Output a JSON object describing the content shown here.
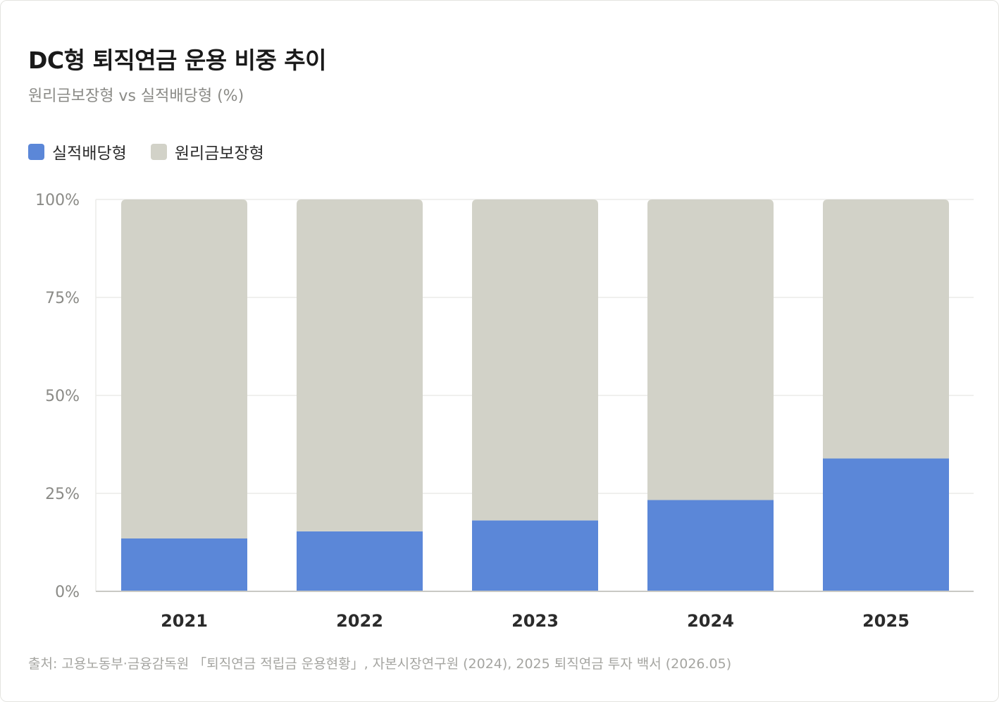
{
  "colors": {
    "performance": "#5b87d8",
    "guaranteed": "#d2d2c8",
    "grid": "#ebebe8",
    "axis_line": "#c9c9c4",
    "y_tick_text": "#8a8a86",
    "x_tick_text": "#2b2b2b"
  },
  "chart_data": {
    "type": "bar",
    "stacked": true,
    "title": "DC형 퇴직연금 운용 비중 추이",
    "subtitle": "원리금보장형 vs 실적배당형 (%)",
    "categories": [
      "2021",
      "2022",
      "2023",
      "2024",
      "2025"
    ],
    "series": [
      {
        "name": "실적배당형",
        "values": [
          13.5,
          15.3,
          18.1,
          23.3,
          33.9
        ]
      },
      {
        "name": "원리금보장형",
        "values": [
          86.5,
          84.7,
          81.9,
          76.7,
          66.1
        ]
      }
    ],
    "ylim": [
      0,
      100
    ],
    "y_ticks": [
      0,
      25,
      50,
      75,
      100
    ],
    "y_tick_labels": [
      "0%",
      "25%",
      "50%",
      "75%",
      "100%"
    ],
    "grid": true,
    "legend_position": "top-left",
    "source": "출처: 고용노동부·금융감독원 「퇴직연금 적립금 운용현황」, 자본시장연구원 (2024), 2025 퇴직연금 투자 백서 (2026.05)"
  }
}
